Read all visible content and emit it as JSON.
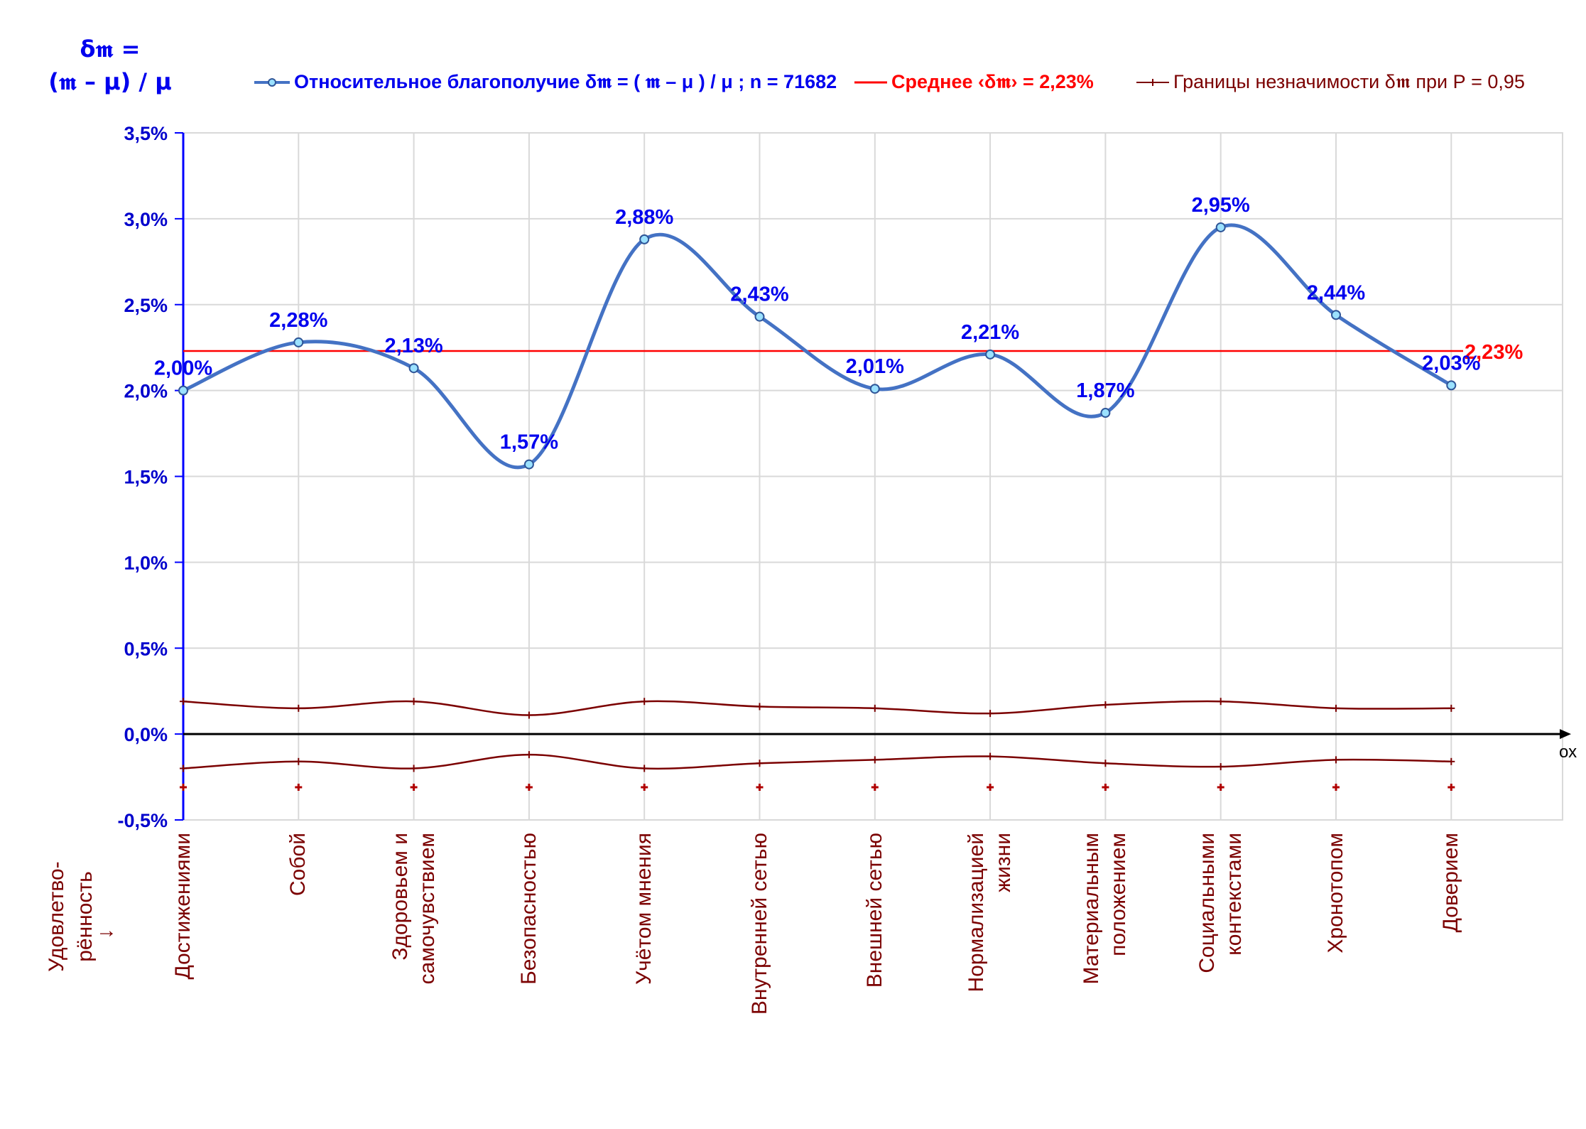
{
  "y_axis_title": {
    "line1": "δ𝖒 =",
    "line2": "(𝖒 – μ) / μ"
  },
  "legend": {
    "series_main": "Относительное благополучие δ𝖒 = ( 𝖒 – μ ) / μ ; n = 71682",
    "series_mean": "Среднее ‹δ𝖒› = 2,23%",
    "series_bounds": "Границы незначимости δ𝖒 при Р = 0,95"
  },
  "side_label": {
    "line1": "Удовлетво-",
    "line2": "рённость",
    "arrow": "→"
  },
  "x_axis_name": "ох",
  "colors": {
    "main": "#4472c4",
    "mean": "#ff0000",
    "bounds": "#7b0000",
    "label_blue": "#0000ee",
    "grid": "#d9d9d9"
  },
  "chart_data": {
    "type": "line",
    "categories": [
      "Достижениями",
      "Собой",
      "Здоровьем и\nсамочувствием",
      "Безопасностью",
      "Учётом мнения",
      "Внутренней сетью",
      "Внешней сетью",
      "Нормализацией\nжизни",
      "Материальным\nположением",
      "Социальными\nконтекстами",
      "Хронотопом",
      "Доверием"
    ],
    "series": [
      {
        "name": "Относительное благополучие δ𝖒 = ( 𝖒 – μ ) / μ ; n = 71682",
        "values": [
          2.0,
          2.28,
          2.13,
          1.57,
          2.88,
          2.43,
          2.01,
          2.21,
          1.87,
          2.95,
          2.44,
          2.03
        ],
        "data_labels": [
          "2,00%",
          "2,28%",
          "2,13%",
          "1,57%",
          "2,88%",
          "2,43%",
          "2,01%",
          "2,21%",
          "1,87%",
          "2,95%",
          "2,44%",
          "2,03%"
        ]
      },
      {
        "name": "Среднее ‹δ𝖒› = 2,23%",
        "value": 2.23,
        "data_label": "2,23%"
      },
      {
        "name": "Границы незначимости δ𝖒 при Р = 0,95",
        "upper": [
          0.19,
          0.15,
          0.19,
          0.11,
          0.19,
          0.16,
          0.15,
          0.12,
          0.17,
          0.19,
          0.15,
          0.15
        ],
        "lower": [
          -0.2,
          -0.16,
          -0.2,
          -0.12,
          -0.2,
          -0.17,
          -0.15,
          -0.13,
          -0.17,
          -0.19,
          -0.15,
          -0.16
        ]
      }
    ],
    "ylim": [
      -0.5,
      3.5
    ],
    "y_ticks": [
      -0.5,
      0.0,
      0.5,
      1.0,
      1.5,
      2.0,
      2.5,
      3.0,
      3.5
    ],
    "y_tick_labels": [
      "-0,5%",
      "0,0%",
      "0,5%",
      "1,0%",
      "1,5%",
      "2,0%",
      "2,5%",
      "3,0%",
      "3,5%"
    ],
    "grid": true,
    "legend_position": "top"
  }
}
